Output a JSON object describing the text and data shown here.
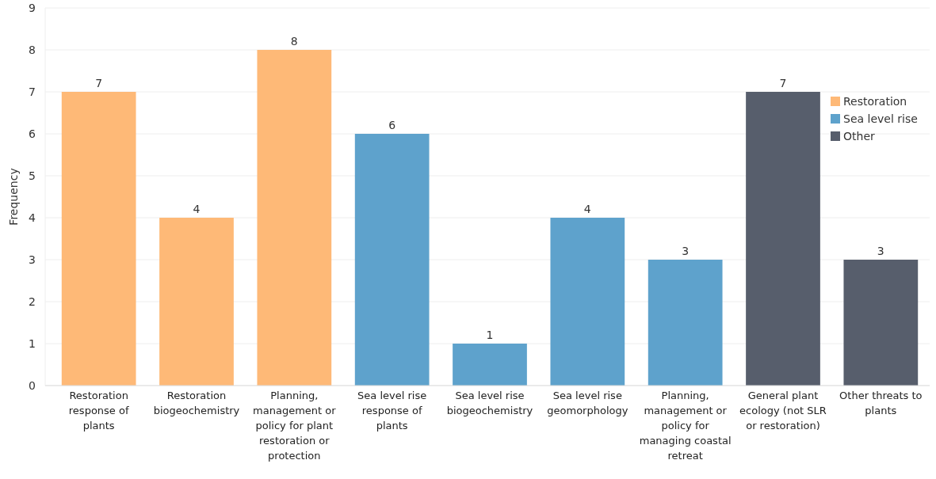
{
  "chart_data": {
    "type": "bar",
    "stacked": true,
    "ylabel": "Frequency",
    "categories": [
      "Restoration response of plants",
      "Restoration biogeochemistry",
      "Planning, management or policy for plant restoration or protection",
      "Sea level rise response of plants",
      "Sea level rise biogeochemistry",
      "Sea level rise geomorphology",
      "Planning, management or policy for managing coastal retreat",
      "General plant ecology (not SLR or restoration)",
      "Other threats to plants"
    ],
    "series": [
      {
        "name": "Restoration",
        "color": "#feb977",
        "values": [
          7,
          4,
          8,
          null,
          null,
          null,
          null,
          null,
          null
        ]
      },
      {
        "name": "Sea level rise",
        "color": "#5ea2cc",
        "values": [
          null,
          null,
          null,
          6,
          1,
          4,
          3,
          null,
          null
        ]
      },
      {
        "name": "Other",
        "color": "#575e6c",
        "values": [
          null,
          null,
          null,
          null,
          null,
          null,
          null,
          7,
          3
        ]
      }
    ],
    "ylim": [
      0,
      9
    ],
    "yticks": [
      0,
      1,
      2,
      3,
      4,
      5,
      6,
      7,
      8,
      9
    ],
    "grid": true,
    "legend": "top right",
    "data_labels": true
  }
}
